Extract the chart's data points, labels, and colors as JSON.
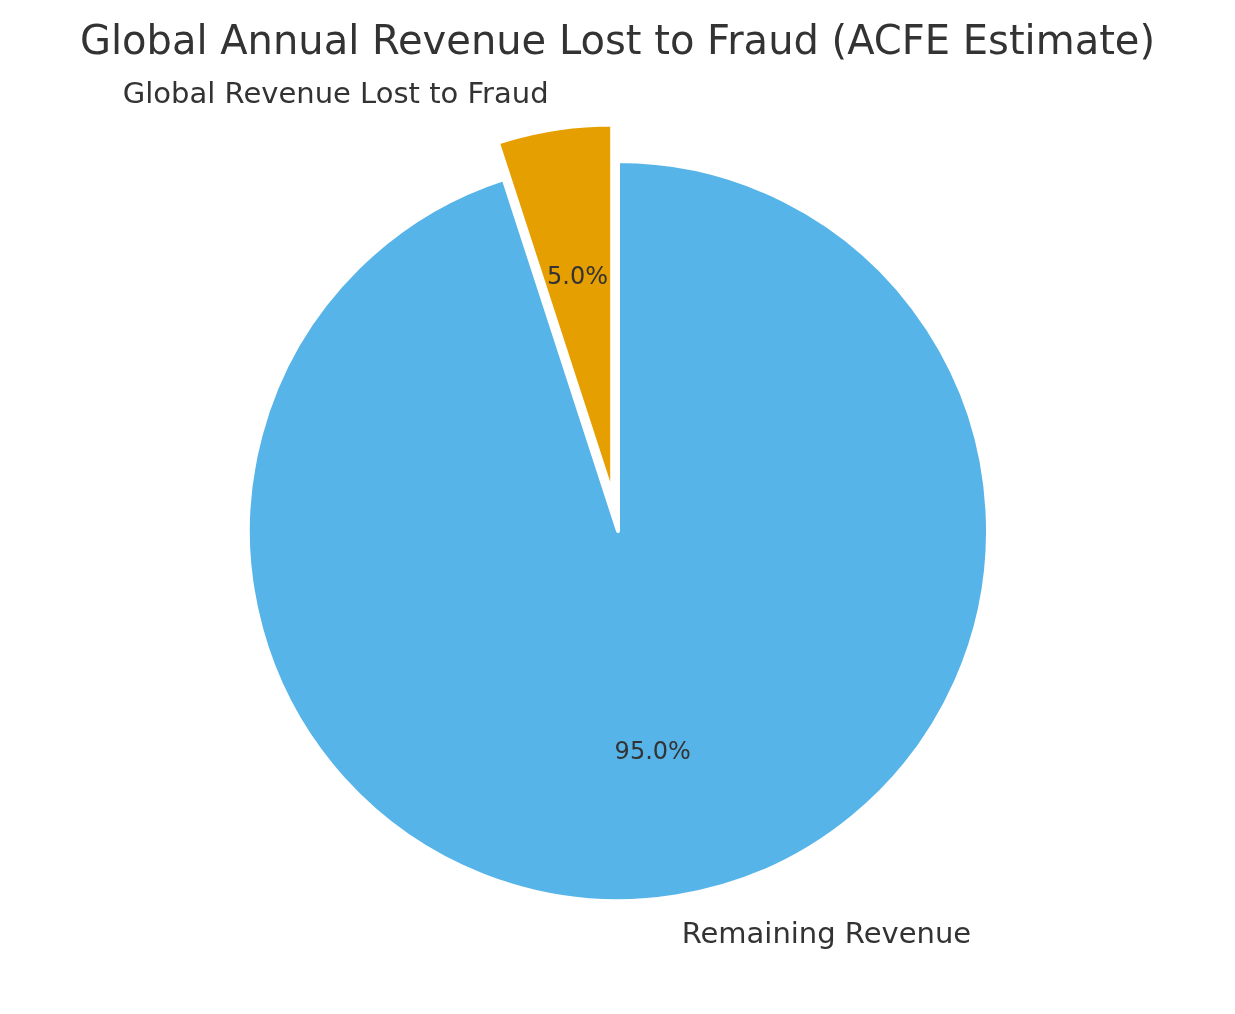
{
  "chart_data": {
    "type": "pie",
    "title": "Global Annual Revenue Lost to Fraud (ACFE Estimate)",
    "categories": [
      "Global Revenue Lost to Fraud",
      "Remaining Revenue"
    ],
    "values": [
      5,
      95
    ],
    "colors": [
      "#e69f00",
      "#56b4e9"
    ],
    "value_labels": [
      "5.0%",
      "95.0%"
    ]
  }
}
